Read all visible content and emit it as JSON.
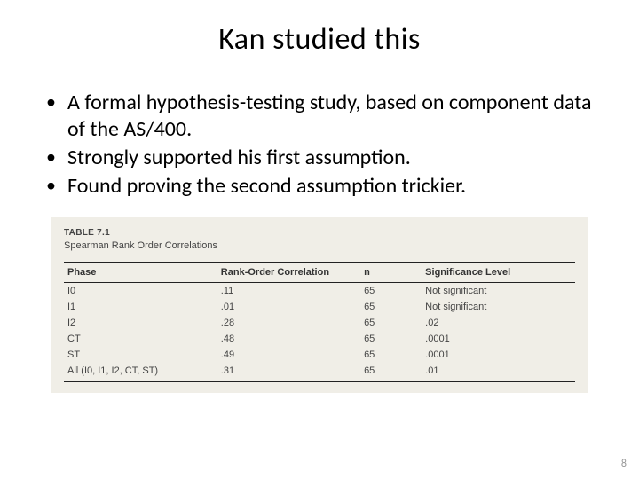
{
  "title": "Kan studied this",
  "bullets": [
    "A formal hypothesis-testing study, based on component data of the AS/400.",
    "Strongly supported his first assumption.",
    "Found proving the second assumption trickier."
  ],
  "table": {
    "number": "TABLE 7.1",
    "caption": "Spearman Rank Order Correlations",
    "background_color": "#f0eee7",
    "border_color": "#222222",
    "header_fontsize": 11,
    "cell_fontsize": 11,
    "columns": [
      "Phase",
      "Rank-Order Correlation",
      "n",
      "Significance Level"
    ],
    "column_widths_pct": [
      30,
      28,
      12,
      30
    ],
    "rows": [
      [
        "I0",
        ".11",
        "65",
        "Not significant"
      ],
      [
        "I1",
        ".01",
        "65",
        "Not significant"
      ],
      [
        "I2",
        ".28",
        "65",
        ".02"
      ],
      [
        "CT",
        ".48",
        "65",
        ".0001"
      ],
      [
        "ST",
        ".49",
        "65",
        ".0001"
      ],
      [
        "All (I0, I1, I2, CT, ST)",
        ".31",
        "65",
        ".01"
      ]
    ]
  },
  "page_number": "8",
  "colors": {
    "slide_bg": "#ffffff",
    "text": "#000000",
    "table_text": "#444444",
    "page_num": "#999999"
  },
  "typography": {
    "title_fontsize": 34,
    "bullet_fontsize": 24,
    "font_family": "Calibri"
  }
}
